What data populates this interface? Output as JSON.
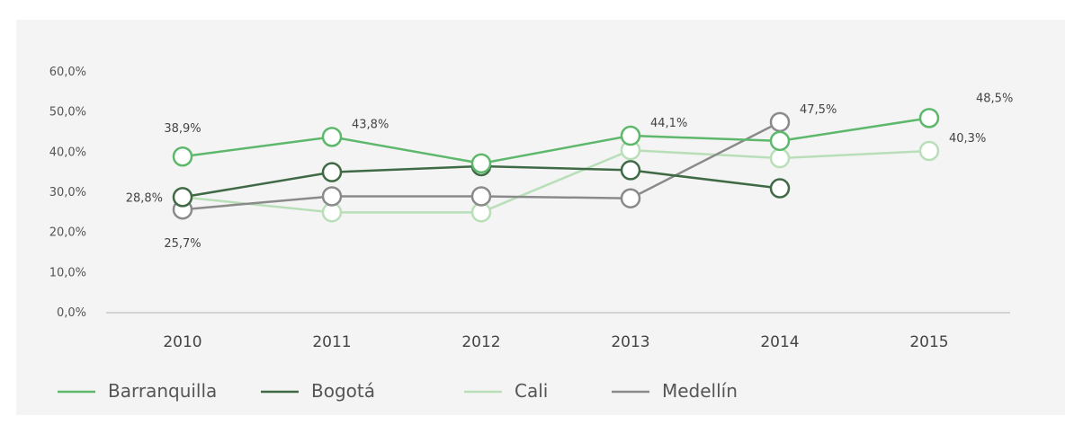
{
  "chart_data": {
    "type": "line",
    "categories": [
      "2010",
      "2011",
      "2012",
      "2013",
      "2014",
      "2015"
    ],
    "y_ticks": [
      "0,0%",
      "10,0%",
      "20,0%",
      "30,0%",
      "40,0%",
      "50,0%",
      "60,0%"
    ],
    "ylim": [
      0,
      60
    ],
    "grid": false,
    "legend_position": "bottom",
    "series": [
      {
        "name": "Barranquilla",
        "color": "#5db86c",
        "values": [
          38.9,
          43.8,
          37.2,
          44.1,
          42.8,
          48.5
        ]
      },
      {
        "name": "Bogotá",
        "color": "#3f6a45",
        "values": [
          28.8,
          35.0,
          36.5,
          35.5,
          31.0,
          null
        ]
      },
      {
        "name": "Cali",
        "color": "#b9dfb9",
        "values": [
          28.8,
          25.0,
          25.0,
          40.5,
          38.5,
          40.3
        ]
      },
      {
        "name": "Medellín",
        "color": "#8a8a8a",
        "values": [
          25.7,
          29.0,
          29.0,
          28.5,
          47.5,
          null
        ]
      }
    ],
    "data_labels": [
      {
        "text": "38,9%",
        "series": 0,
        "index": 0,
        "pos": "above"
      },
      {
        "text": "43,8%",
        "series": 0,
        "index": 1,
        "pos": "right"
      },
      {
        "text": "44,1%",
        "series": 0,
        "index": 3,
        "pos": "right"
      },
      {
        "text": "48,5%",
        "series": 0,
        "index": 5,
        "pos": "upper-right"
      },
      {
        "text": "47,5%",
        "series": 3,
        "index": 4,
        "pos": "right"
      },
      {
        "text": "40,3%",
        "series": 2,
        "index": 5,
        "pos": "right"
      },
      {
        "text": "28,8%",
        "series": 1,
        "index": 0,
        "pos": "left"
      },
      {
        "text": "25,7%",
        "series": 3,
        "index": 0,
        "pos": "below"
      }
    ]
  }
}
